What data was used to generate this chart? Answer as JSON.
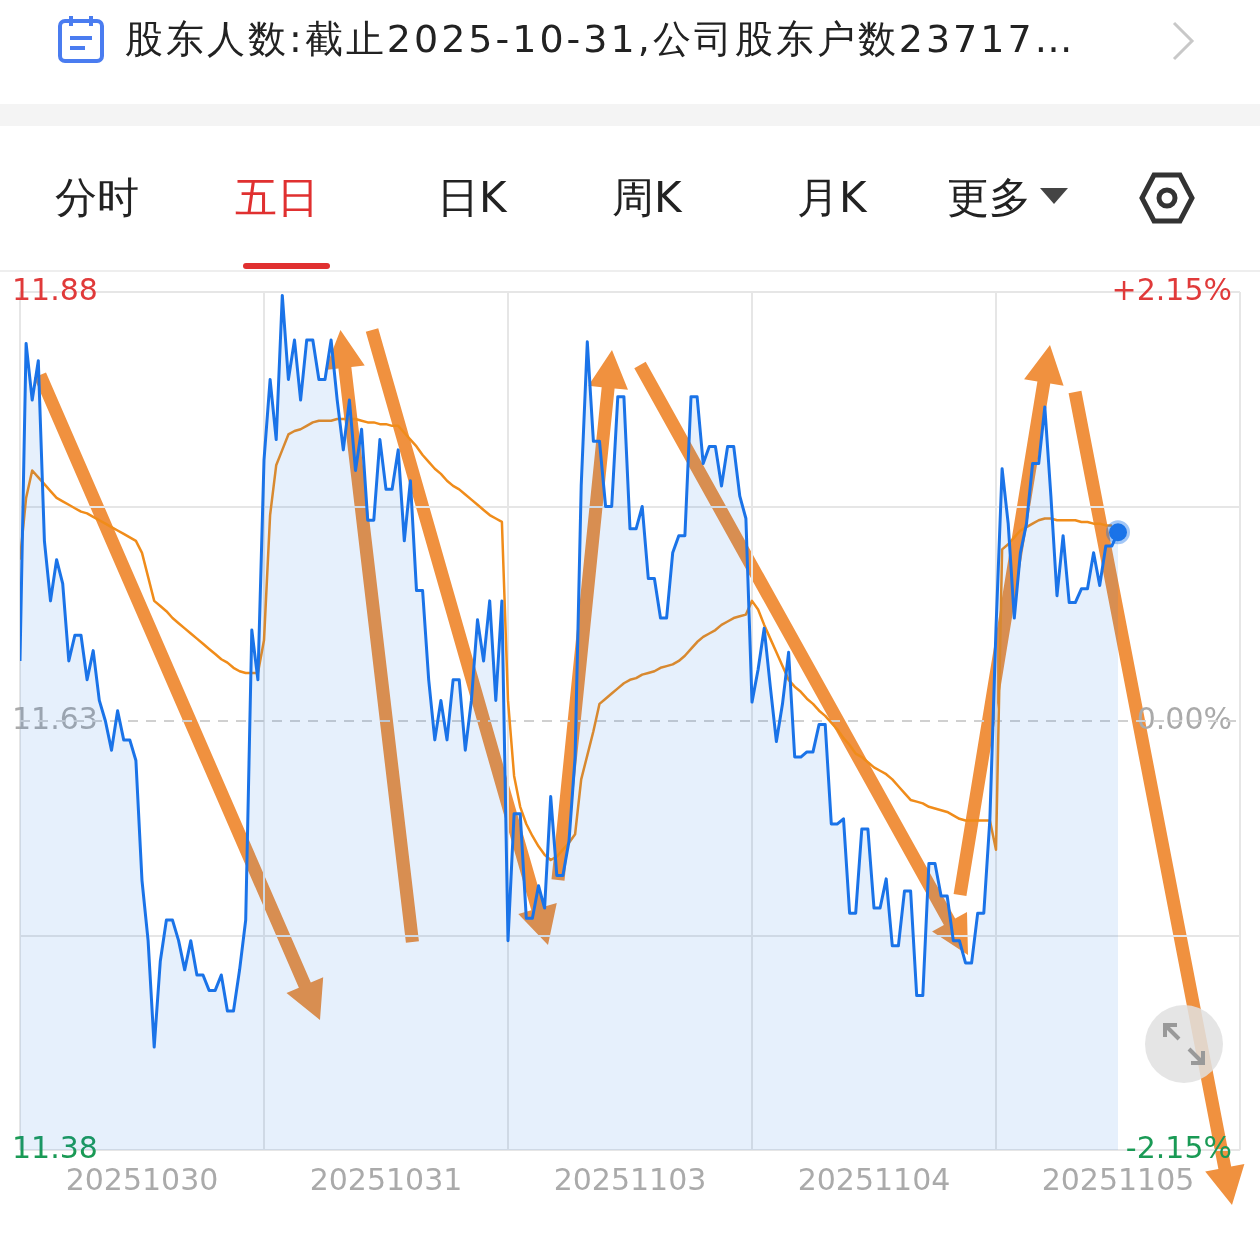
{
  "chart_data": {
    "type": "line",
    "annotations": [
      "股东人数:截止2025-10-31,公司股东户数23717…",
      "分时",
      "五日",
      "日K",
      "周K",
      "月K",
      "更多"
    ],
    "categories": [
      null,
      null,
      null,
      null,
      null,
      null,
      null,
      null,
      null,
      null,
      null,
      null,
      null,
      null,
      null,
      null,
      null,
      null,
      null,
      null,
      "20251030",
      null,
      null,
      null,
      null,
      null,
      null,
      null,
      null,
      null,
      null,
      null,
      null,
      null,
      null,
      null,
      null,
      null,
      null,
      null,
      null,
      null,
      null,
      null,
      null,
      null,
      null,
      null,
      null,
      null,
      null,
      null,
      null,
      null,
      null,
      null,
      null,
      null,
      null,
      null,
      "20251031",
      null,
      null,
      null,
      null,
      null,
      null,
      null,
      null,
      null,
      null,
      null,
      null,
      null,
      null,
      null,
      null,
      null,
      null,
      null,
      null,
      null,
      null,
      null,
      null,
      null,
      null,
      null,
      null,
      null,
      null,
      null,
      null,
      null,
      null,
      null,
      null,
      null,
      null,
      null,
      "20251103",
      null,
      null,
      null,
      null,
      null,
      null,
      null,
      null,
      null,
      null,
      null,
      null,
      null,
      null,
      null,
      null,
      null,
      null,
      null,
      null,
      null,
      null,
      null,
      null,
      null,
      null,
      null,
      null,
      null,
      null,
      null,
      null,
      null,
      null,
      null,
      null,
      null,
      null,
      null,
      "20251104",
      null,
      null,
      null,
      null,
      null,
      null,
      null,
      null,
      null,
      null,
      null,
      null,
      null,
      null,
      null,
      null,
      null,
      null,
      null,
      null,
      null,
      null,
      null,
      null,
      null,
      null,
      null,
      null,
      null,
      null,
      null,
      null,
      null,
      null,
      null,
      null,
      null,
      null,
      null,
      "20251105",
      null,
      null,
      null,
      null,
      null,
      null,
      null,
      null,
      null,
      null,
      null,
      null,
      null,
      null,
      null,
      null,
      null,
      null,
      null
    ],
    "ylim": [
      11.38,
      11.88
    ],
    "yticks": [
      11.38,
      {
        "value": 11.505,
        "label": null
      },
      11.63,
      {
        "value": 11.755,
        "label": null
      },
      11.88
    ],
    "y2lim": [
      -2.15,
      2.15
    ],
    "y2ticks": [
      {
        "value": -2.15,
        "label": "-2.15%"
      },
      {
        "value": 0,
        "label": "0.00%"
      },
      {
        "value": 2.15,
        "label": "+2.15%"
      }
    ],
    "ref_lines": [
      {
        "axis": "y",
        "value": 11.63,
        "color": "#d0d0d0",
        "line_style": "dashed"
      }
    ],
    "grid": true,
    "series": [
      {
        "type": "area",
        "color": "#1a73e8",
        "values": [
          11.665,
          11.85,
          11.817,
          11.84,
          11.735,
          11.7,
          11.724,
          11.71,
          11.665,
          11.68,
          11.68,
          11.654,
          11.671,
          11.642,
          11.63,
          11.613,
          11.636,
          11.619,
          11.619,
          11.607,
          11.537,
          11.502,
          11.44,
          11.49,
          11.514,
          11.514,
          11.502,
          11.485,
          11.502,
          11.482,
          11.482,
          11.473,
          11.473,
          11.482,
          11.461,
          11.461,
          11.485,
          11.514,
          11.683,
          11.654,
          11.782,
          11.829,
          11.794,
          11.878,
          11.829,
          11.852,
          11.817,
          11.852,
          11.852,
          11.829,
          11.829,
          11.852,
          11.817,
          11.788,
          11.817,
          11.776,
          11.8,
          11.747,
          11.747,
          11.794,
          11.765,
          11.765,
          11.788,
          11.735,
          11.77,
          11.706,
          11.706,
          11.654,
          11.619,
          11.642,
          11.619,
          11.654,
          11.654,
          11.613,
          11.642,
          11.689,
          11.665,
          11.7,
          11.642,
          11.7,
          11.502,
          11.576,
          11.576,
          11.515,
          11.515,
          11.534,
          11.521,
          11.586,
          11.54,
          11.54,
          11.56,
          11.609,
          11.767,
          11.851,
          11.793,
          11.793,
          11.755,
          11.755,
          11.819,
          11.819,
          11.742,
          11.742,
          11.755,
          11.713,
          11.713,
          11.69,
          11.69,
          11.728,
          11.738,
          11.738,
          11.819,
          11.819,
          11.78,
          11.79,
          11.79,
          11.767,
          11.79,
          11.79,
          11.761,
          11.748,
          11.641,
          11.66,
          11.684,
          11.65,
          11.618,
          11.64,
          11.67,
          11.609,
          11.609,
          11.612,
          11.612,
          11.628,
          11.628,
          11.57,
          11.57,
          11.573,
          11.518,
          11.518,
          11.567,
          11.567,
          11.521,
          11.521,
          11.538,
          11.499,
          11.499,
          11.531,
          11.531,
          11.47,
          11.47,
          11.547,
          11.547,
          11.528,
          11.528,
          11.502,
          11.502,
          11.489,
          11.489,
          11.518,
          11.518,
          11.573,
          11.684,
          11.777,
          11.745,
          11.69,
          11.728,
          11.745,
          11.78,
          11.78,
          11.813,
          11.761,
          11.703,
          11.738,
          11.699,
          11.699,
          11.707,
          11.707,
          11.728,
          11.709,
          11.732,
          11.732,
          11.74,
          null,
          null,
          null,
          null,
          null,
          null,
          null,
          null,
          null,
          null,
          null,
          null,
          null,
          null,
          null,
          null,
          null,
          null,
          null
        ]
      },
      {
        "type": "line",
        "color": "#f08c1a",
        "values": [
          11.724,
          11.76,
          11.776,
          11.772,
          11.768,
          11.764,
          11.76,
          11.758,
          11.756,
          11.754,
          11.752,
          11.751,
          11.749,
          11.747,
          11.745,
          11.743,
          11.741,
          11.739,
          11.737,
          11.735,
          11.728,
          11.714,
          11.7,
          11.697,
          11.694,
          11.69,
          11.687,
          11.684,
          11.681,
          11.678,
          11.675,
          11.672,
          11.669,
          11.666,
          11.664,
          11.661,
          11.659,
          11.658,
          11.658,
          11.658,
          11.677,
          11.75,
          11.779,
          11.788,
          11.797,
          11.799,
          11.8,
          11.802,
          11.804,
          11.805,
          11.805,
          11.805,
          11.806,
          11.806,
          11.806,
          11.806,
          11.805,
          11.804,
          11.804,
          11.803,
          11.803,
          11.802,
          11.802,
          11.798,
          11.794,
          11.79,
          11.785,
          11.781,
          11.777,
          11.774,
          11.77,
          11.767,
          11.765,
          11.762,
          11.759,
          11.756,
          11.753,
          11.75,
          11.748,
          11.746,
          11.642,
          11.598,
          11.58,
          11.57,
          11.563,
          11.557,
          11.552,
          11.549,
          11.551,
          11.555,
          11.559,
          11.564,
          11.596,
          11.61,
          11.624,
          11.64,
          11.643,
          11.646,
          11.649,
          11.652,
          11.654,
          11.655,
          11.657,
          11.658,
          11.659,
          11.661,
          11.662,
          11.663,
          11.665,
          11.668,
          11.672,
          11.676,
          11.679,
          11.681,
          11.683,
          11.686,
          11.688,
          11.69,
          11.691,
          11.692,
          11.7,
          11.695,
          11.686,
          11.678,
          11.67,
          11.662,
          11.654,
          11.65,
          11.647,
          11.643,
          11.64,
          11.636,
          11.633,
          11.629,
          11.625,
          11.62,
          11.616,
          11.611,
          11.609,
          11.606,
          11.603,
          11.601,
          11.599,
          11.596,
          11.592,
          11.588,
          11.584,
          11.583,
          11.582,
          11.58,
          11.579,
          11.578,
          11.577,
          11.575,
          11.573,
          11.572,
          11.572,
          11.572,
          11.572,
          11.572,
          11.555,
          11.73,
          11.733,
          11.737,
          11.741,
          11.743,
          11.745,
          11.747,
          11.748,
          11.748,
          11.747,
          11.747,
          11.747,
          11.747,
          11.746,
          11.746,
          11.745,
          11.745,
          11.744,
          11.744,
          null,
          null,
          null,
          null,
          null,
          null,
          null,
          null,
          null,
          null,
          null,
          null,
          null,
          null,
          null,
          null,
          null,
          null,
          null,
          null
        ]
      }
    ]
  }
}
